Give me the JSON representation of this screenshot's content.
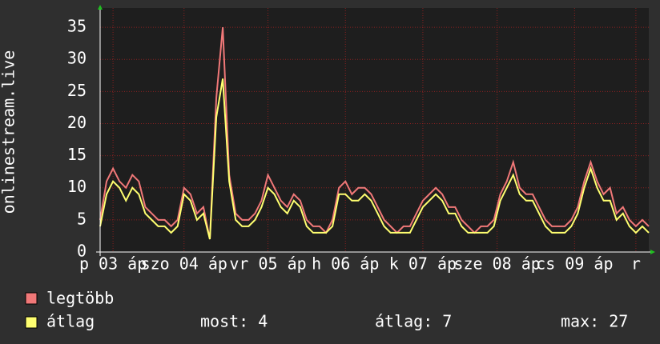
{
  "chart_data": {
    "type": "line",
    "y_label": "onlinestream.live",
    "x": [
      0,
      2,
      4,
      6,
      8,
      10,
      12,
      14,
      16,
      18,
      20,
      22,
      24,
      26,
      28,
      30,
      32,
      34,
      36,
      38,
      40,
      42,
      44,
      46,
      48,
      50,
      52,
      54,
      56,
      58,
      60,
      62,
      64,
      66,
      68,
      70,
      72,
      74,
      76,
      78,
      80,
      82,
      84,
      86,
      88,
      90,
      92,
      94,
      96,
      98,
      100,
      102,
      104,
      106,
      108,
      110,
      112,
      114,
      116,
      118,
      120,
      122,
      124,
      126,
      128,
      130,
      132,
      134,
      136,
      138,
      140,
      142,
      144,
      146,
      148,
      150,
      152,
      154,
      156,
      158,
      160,
      162,
      164,
      166,
      168,
      170
    ],
    "xlim": [
      0,
      170
    ],
    "xticks": [
      {
        "value": 4,
        "label": "p 03 áp"
      },
      {
        "value": 26,
        "label": "szo 04 áp"
      },
      {
        "value": 52,
        "label": "vr 05 áp"
      },
      {
        "value": 76,
        "label": "h 06 áp"
      },
      {
        "value": 100,
        "label": "k 07 áp"
      },
      {
        "value": 123,
        "label": "sze 08 áp"
      },
      {
        "value": 147,
        "label": "cs 09 áp"
      },
      {
        "value": 166,
        "label": "r"
      }
    ],
    "ylim": [
      0,
      38
    ],
    "yticks": [
      0,
      5,
      10,
      15,
      20,
      25,
      30,
      35
    ],
    "grid": true,
    "series": [
      {
        "name": "legtöbb",
        "color": "#f07878",
        "values": [
          5,
          11,
          13,
          11,
          10,
          12,
          11,
          7,
          6,
          5,
          5,
          4,
          5,
          10,
          9,
          6,
          7,
          2,
          24,
          35,
          12,
          6,
          5,
          5,
          6,
          8,
          12,
          10,
          8,
          7,
          9,
          8,
          5,
          4,
          4,
          3,
          5,
          10,
          11,
          9,
          10,
          10,
          9,
          7,
          5,
          4,
          3,
          4,
          4,
          6,
          8,
          9,
          10,
          9,
          7,
          7,
          5,
          4,
          3,
          4,
          4,
          5,
          9,
          11,
          14,
          10,
          9,
          9,
          7,
          5,
          4,
          4,
          4,
          5,
          7,
          11,
          14,
          11,
          9,
          10,
          6,
          7,
          5,
          4,
          5,
          4
        ]
      },
      {
        "name": "átlag",
        "color": "#ffff70",
        "values": [
          4,
          9,
          11,
          10,
          8,
          10,
          9,
          6,
          5,
          4,
          4,
          3,
          4,
          9,
          8,
          5,
          6,
          2,
          21,
          27,
          11,
          5,
          4,
          4,
          5,
          7,
          10,
          9,
          7,
          6,
          8,
          7,
          4,
          3,
          3,
          3,
          4,
          9,
          9,
          8,
          8,
          9,
          8,
          6,
          4,
          3,
          3,
          3,
          3,
          5,
          7,
          8,
          9,
          8,
          6,
          6,
          4,
          3,
          3,
          3,
          3,
          4,
          8,
          10,
          12,
          9,
          8,
          8,
          6,
          4,
          3,
          3,
          3,
          4,
          6,
          10,
          13,
          10,
          8,
          8,
          5,
          6,
          4,
          3,
          4,
          3
        ]
      }
    ],
    "stats": [
      "most: 4",
      "átlag: 7",
      "max: 27"
    ]
  }
}
